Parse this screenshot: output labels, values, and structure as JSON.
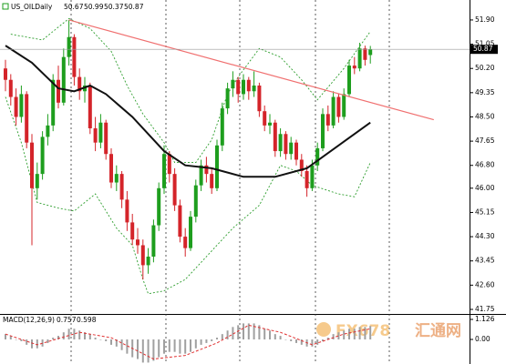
{
  "chart_data": {
    "type": "candlestick",
    "symbol": "US_OILDaily",
    "header_values": [
      50.67,
      50.99,
      50.37,
      50.87
    ],
    "last_price": {
      "value": 50.87,
      "label": "50.87"
    },
    "ylim": [
      41.59,
      52.6
    ],
    "yticks": [
      {
        "value": 51.9,
        "label": "51.90"
      },
      {
        "value": 51.05,
        "label": "51.05"
      },
      {
        "value": 50.2,
        "label": "50.20"
      },
      {
        "value": 49.35,
        "label": "49.35"
      },
      {
        "value": 48.5,
        "label": "48.50"
      },
      {
        "value": 47.65,
        "label": "47.65"
      },
      {
        "value": 46.8,
        "label": "46.80"
      },
      {
        "value": 46.0,
        "label": "46.00"
      },
      {
        "value": 45.15,
        "label": "45.15"
      },
      {
        "value": 44.3,
        "label": "44.30"
      },
      {
        "value": 43.45,
        "label": "43.45"
      },
      {
        "value": 42.6,
        "label": "42.60"
      },
      {
        "value": 41.75,
        "label": "41.75"
      }
    ],
    "up_color": "#1e9e1e",
    "down_color": "#d4242a",
    "ohlc": [
      [
        50.2,
        50.5,
        49.4,
        49.8
      ],
      [
        49.8,
        50.0,
        48.9,
        49.2
      ],
      [
        49.2,
        49.5,
        48.2,
        48.5
      ],
      [
        48.5,
        49.6,
        48.3,
        49.3
      ],
      [
        49.3,
        49.4,
        47.4,
        47.6
      ],
      [
        47.6,
        47.9,
        44.0,
        46.0
      ],
      [
        46.0,
        46.9,
        45.6,
        46.5
      ],
      [
        46.5,
        48.0,
        46.3,
        47.8
      ],
      [
        47.8,
        48.6,
        47.5,
        48.2
      ],
      [
        48.2,
        50.0,
        48.0,
        49.8
      ],
      [
        49.8,
        50.3,
        48.8,
        49.0
      ],
      [
        49.0,
        50.9,
        48.9,
        50.6
      ],
      [
        50.6,
        51.9,
        50.3,
        51.3
      ],
      [
        51.3,
        51.4,
        49.6,
        49.9
      ],
      [
        49.9,
        50.2,
        49.1,
        49.4
      ],
      [
        49.4,
        49.9,
        49.0,
        49.6
      ],
      [
        49.6,
        49.7,
        47.9,
        48.1
      ],
      [
        48.1,
        48.5,
        47.3,
        47.6
      ],
      [
        47.6,
        48.6,
        47.4,
        48.3
      ],
      [
        48.3,
        48.4,
        47.0,
        47.2
      ],
      [
        47.2,
        47.4,
        46.0,
        46.2
      ],
      [
        46.2,
        46.8,
        45.9,
        46.5
      ],
      [
        46.5,
        46.6,
        45.3,
        45.6
      ],
      [
        45.6,
        45.9,
        44.5,
        44.8
      ],
      [
        44.8,
        45.1,
        44.0,
        44.2
      ],
      [
        44.2,
        44.6,
        43.7,
        44.0
      ],
      [
        44.0,
        44.2,
        42.8,
        43.3
      ],
      [
        43.3,
        43.9,
        43.0,
        43.6
      ],
      [
        43.6,
        44.9,
        43.4,
        44.7
      ],
      [
        44.7,
        46.2,
        44.5,
        46.0
      ],
      [
        46.0,
        47.5,
        45.8,
        47.2
      ],
      [
        47.2,
        47.3,
        46.2,
        46.5
      ],
      [
        46.5,
        46.7,
        45.2,
        45.4
      ],
      [
        45.4,
        45.6,
        44.1,
        44.3
      ],
      [
        44.3,
        44.6,
        43.6,
        43.9
      ],
      [
        43.9,
        45.2,
        43.8,
        45.0
      ],
      [
        45.0,
        46.3,
        44.8,
        46.1
      ],
      [
        46.1,
        47.0,
        45.9,
        46.8
      ],
      [
        46.8,
        47.1,
        46.2,
        46.5
      ],
      [
        46.5,
        46.7,
        45.8,
        46.0
      ],
      [
        46.0,
        47.7,
        45.9,
        47.5
      ],
      [
        47.5,
        49.0,
        47.3,
        48.8
      ],
      [
        48.8,
        49.7,
        48.6,
        49.5
      ],
      [
        49.5,
        50.1,
        49.2,
        49.8
      ],
      [
        49.8,
        49.9,
        49.0,
        49.3
      ],
      [
        49.3,
        50.0,
        49.1,
        49.8
      ],
      [
        49.8,
        49.9,
        49.1,
        49.4
      ],
      [
        49.4,
        50.1,
        49.2,
        49.6
      ],
      [
        49.6,
        49.7,
        48.5,
        48.7
      ],
      [
        48.7,
        48.9,
        48.0,
        48.2
      ],
      [
        48.2,
        48.6,
        47.9,
        48.3
      ],
      [
        48.3,
        48.4,
        47.1,
        47.3
      ],
      [
        47.3,
        48.1,
        47.1,
        47.9
      ],
      [
        47.9,
        48.0,
        47.0,
        47.2
      ],
      [
        47.2,
        47.8,
        47.0,
        47.6
      ],
      [
        47.6,
        47.7,
        46.8,
        47.0
      ],
      [
        47.0,
        47.2,
        46.4,
        46.6
      ],
      [
        46.6,
        46.8,
        45.7,
        46.0
      ],
      [
        46.0,
        47.0,
        45.9,
        46.8
      ],
      [
        46.8,
        47.6,
        46.6,
        47.4
      ],
      [
        47.4,
        48.8,
        47.3,
        48.6
      ],
      [
        48.6,
        48.9,
        48.0,
        48.2
      ],
      [
        48.2,
        49.4,
        48.1,
        49.2
      ],
      [
        49.2,
        49.3,
        48.3,
        48.5
      ],
      [
        48.5,
        49.5,
        48.4,
        49.3
      ],
      [
        49.3,
        50.5,
        49.2,
        50.3
      ],
      [
        50.3,
        50.6,
        50.0,
        50.2
      ],
      [
        50.2,
        51.1,
        50.1,
        50.9
      ],
      [
        50.9,
        51.0,
        50.3,
        50.5
      ],
      [
        50.67,
        50.99,
        50.37,
        50.87
      ]
    ],
    "moving_average": {
      "color": "#111111",
      "x": [
        0,
        5,
        10,
        13,
        16,
        19,
        24,
        30,
        34,
        39,
        45,
        51,
        57,
        63,
        69
      ],
      "values": [
        51.0,
        50.4,
        49.5,
        49.4,
        49.6,
        49.3,
        48.5,
        47.3,
        46.8,
        46.7,
        46.4,
        46.4,
        46.7,
        47.5,
        48.3
      ]
    },
    "band_upper": {
      "color": "#2e9e2e",
      "x": [
        1,
        7,
        12,
        16,
        20,
        23,
        26,
        30,
        32,
        36,
        39,
        42,
        44,
        48,
        52,
        56,
        59,
        64,
        69
      ],
      "values": [
        51.4,
        51.2,
        51.95,
        51.6,
        50.8,
        49.6,
        48.6,
        47.6,
        46.9,
        46.9,
        47.7,
        49.3,
        49.9,
        50.9,
        50.6,
        49.8,
        49.1,
        50.2,
        51.5
      ]
    },
    "band_lower": {
      "color": "#2e9e2e",
      "x": [
        0,
        3,
        6,
        10,
        13,
        17,
        21,
        24,
        26,
        27,
        30,
        34,
        38,
        43,
        48,
        52,
        55,
        58,
        63,
        66,
        69
      ],
      "values": [
        49.2,
        47.6,
        45.5,
        45.3,
        45.2,
        45.8,
        44.6,
        44.0,
        42.8,
        42.3,
        42.4,
        42.8,
        43.6,
        44.6,
        45.4,
        46.8,
        46.6,
        46.1,
        45.8,
        45.7,
        46.9
      ]
    },
    "trendline": {
      "color": "#f07070",
      "x": [
        12,
        81
      ],
      "values": [
        51.9,
        48.4
      ]
    },
    "macd": {
      "label": "MACD(12,26,9)",
      "readings": [
        0.757,
        0.598
      ],
      "ylim": [
        -1.38,
        1.33
      ],
      "yticks": [
        1.126,
        {
          "value": 0,
          "label": "0.00"
        }
      ],
      "histogram": {
        "color": "#a0a0a0",
        "values": [
          0.3,
          0.2,
          0.0,
          -0.1,
          -0.3,
          -0.5,
          -0.5,
          -0.4,
          -0.2,
          0.1,
          0.2,
          0.4,
          0.6,
          0.6,
          0.5,
          0.4,
          0.3,
          0.1,
          0.0,
          -0.1,
          -0.3,
          -0.4,
          -0.6,
          -0.8,
          -1.0,
          -1.1,
          -1.3,
          -1.3,
          -1.2,
          -1.0,
          -0.8,
          -0.7,
          -0.7,
          -0.8,
          -0.8,
          -0.7,
          -0.5,
          -0.3,
          -0.2,
          -0.1,
          0.1,
          0.3,
          0.5,
          0.7,
          0.8,
          0.9,
          0.9,
          0.9,
          0.8,
          0.6,
          0.5,
          0.3,
          0.2,
          0.0,
          -0.1,
          -0.2,
          -0.3,
          -0.4,
          -0.4,
          -0.3,
          -0.1,
          0.1,
          0.3,
          0.4,
          0.5,
          0.6,
          0.6,
          0.7,
          0.7,
          0.757
        ]
      },
      "signal": {
        "color": "#e03030",
        "x": [
          0,
          6,
          14,
          20,
          28,
          34,
          40,
          46,
          52,
          58,
          64,
          69
        ],
        "values": [
          0.3,
          -0.3,
          0.4,
          0.1,
          -1.1,
          -0.9,
          -0.2,
          0.8,
          0.4,
          -0.3,
          0.3,
          0.598
        ]
      }
    },
    "watermark": {
      "brand": "FX678",
      "name": "汇通网"
    }
  }
}
